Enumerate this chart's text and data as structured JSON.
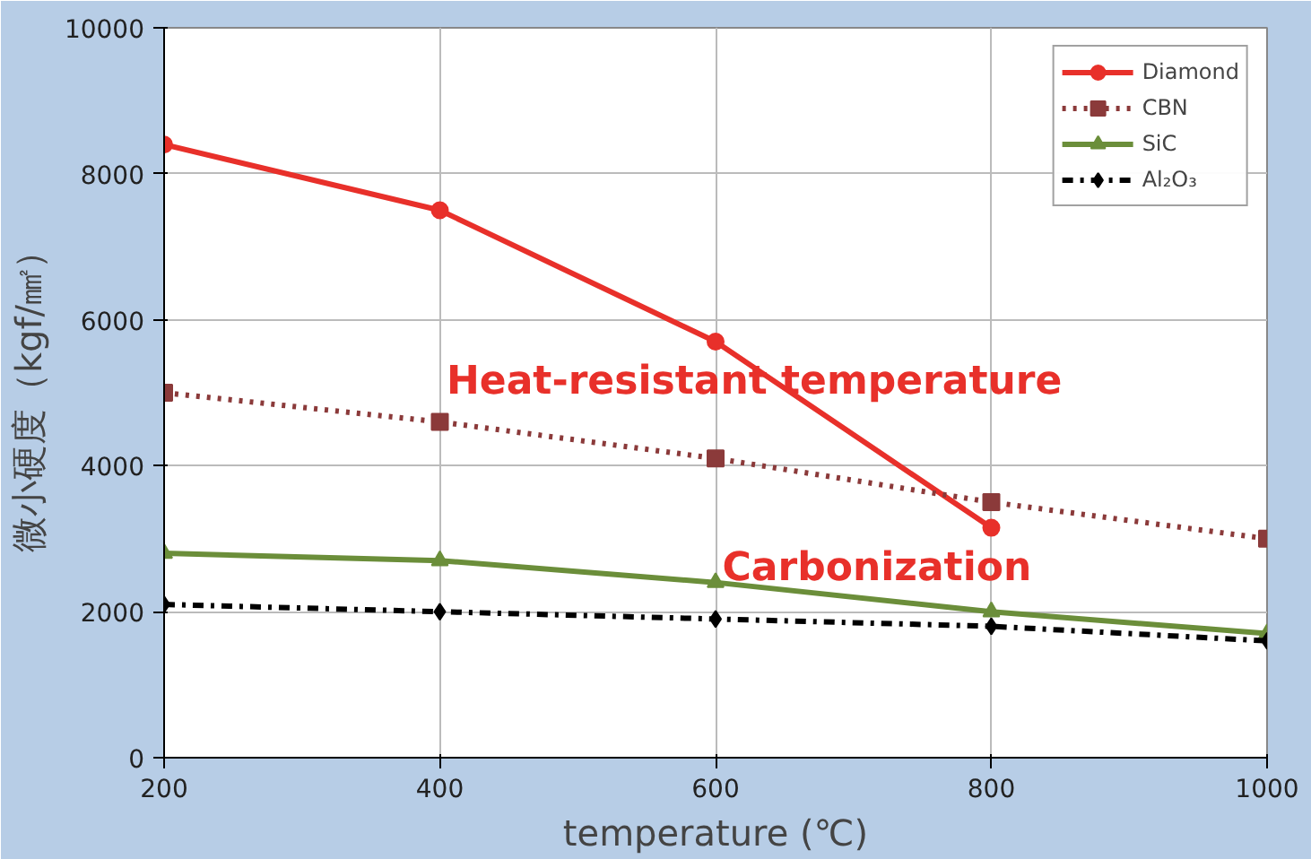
{
  "chart_data": {
    "type": "line",
    "xlabel": "temperature (℃)",
    "ylabel": "微小硬度（kgf/㎟）",
    "x": [
      200,
      400,
      600,
      800,
      1000
    ],
    "series": [
      {
        "name": "Diamond",
        "color": "#e8302a",
        "values": [
          8400,
          7500,
          5700,
          3150,
          null
        ],
        "marker": "circle",
        "line_style": "solid"
      },
      {
        "name": "CBN",
        "color": "#8b3a3a",
        "values": [
          5000,
          4600,
          4100,
          3500,
          3000
        ],
        "marker": "square",
        "line_style": "dotted"
      },
      {
        "name": "SiC",
        "color": "#6b8e3a",
        "values": [
          2800,
          2700,
          2400,
          2000,
          1700
        ],
        "marker": "triangle",
        "line_style": "solid"
      },
      {
        "name": "Al₂O₃",
        "color": "#000000",
        "values": [
          2100,
          2000,
          1900,
          1800,
          1600
        ],
        "marker": "diamond",
        "line_style": "dashdot"
      }
    ],
    "xlim": [
      200,
      1000
    ],
    "xticks": [
      200,
      400,
      600,
      800,
      1000
    ],
    "ylim": [
      0,
      10000
    ],
    "yticks": [
      0,
      2000,
      4000,
      6000,
      8000,
      10000
    ],
    "grid": true,
    "legend": "top right",
    "annotations": [
      {
        "text": "Heat-resistant temperature",
        "x": 600,
        "y": 5700
      },
      {
        "text": "Carbonization",
        "x": 800,
        "y": 3150
      }
    ]
  }
}
